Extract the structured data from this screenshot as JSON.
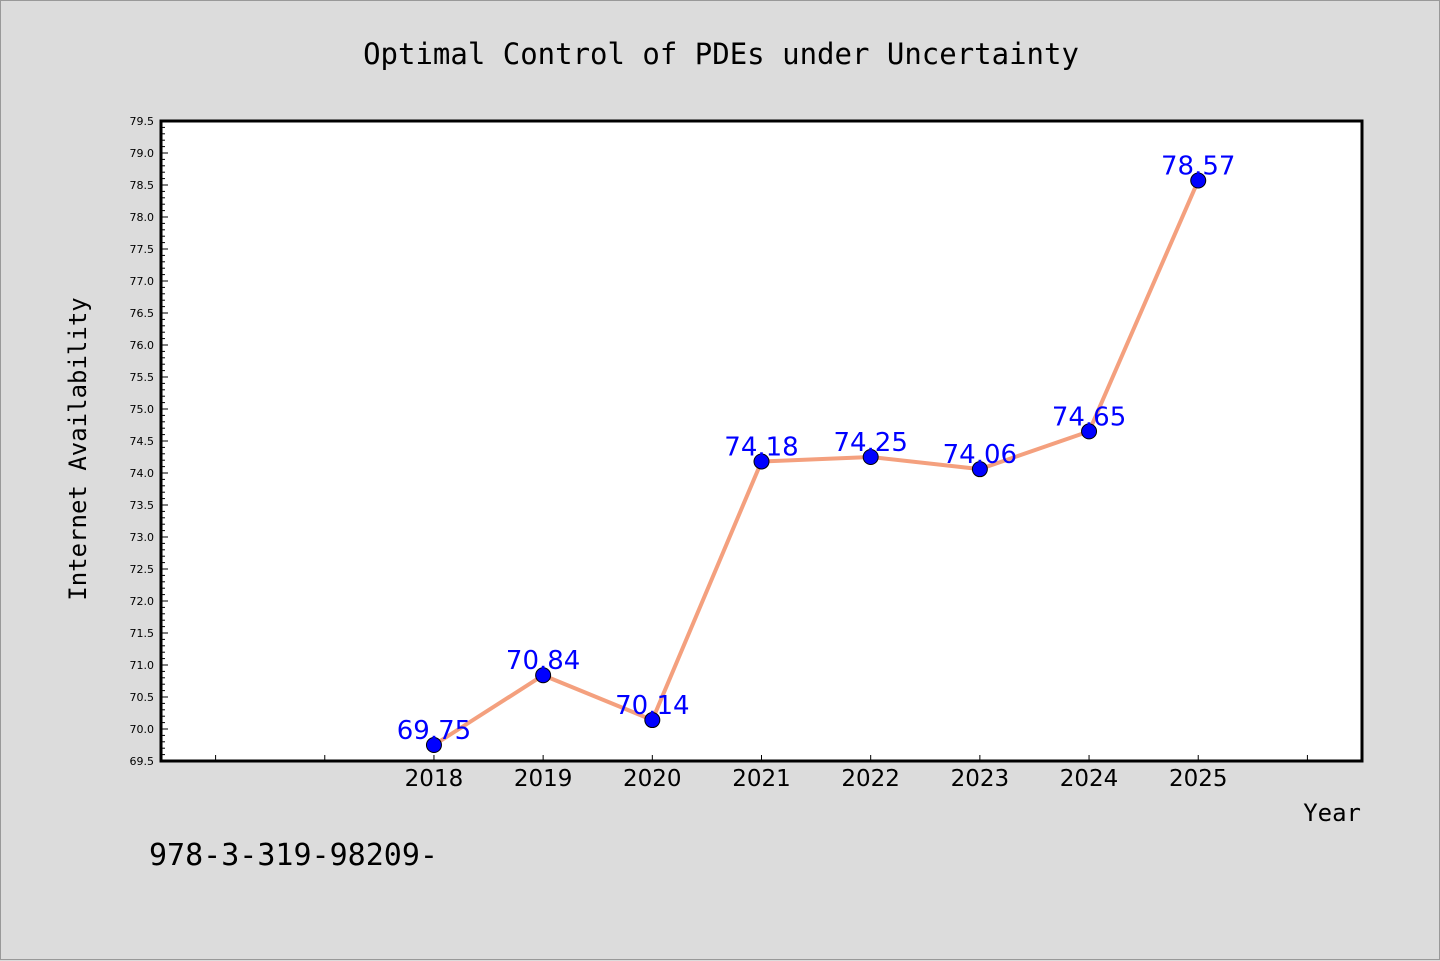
{
  "footer_text": "978-3-319-98209-",
  "chart_data": {
    "type": "line",
    "title": "Optimal Control of PDEs under Uncertainty",
    "xlabel": "Year",
    "ylabel": "Internet Availability",
    "categories": [
      "2018",
      "2019",
      "2020",
      "2021",
      "2022",
      "2023",
      "2024",
      "2025"
    ],
    "x": [
      2018,
      2019,
      2020,
      2021,
      2022,
      2023,
      2024,
      2025
    ],
    "values": [
      69.75,
      70.84,
      70.14,
      74.18,
      74.25,
      74.06,
      74.65,
      78.57
    ],
    "data_labels": [
      "69.75",
      "70.84",
      "70.14",
      "74.18",
      "74.25",
      "74.06",
      "74.65",
      "78.57"
    ],
    "xlim": [
      2015.5,
      2026.5
    ],
    "ylim": [
      69.5,
      79.5
    ],
    "yticks": [
      "69.5",
      "70.0",
      "70.5",
      "71.0",
      "71.5",
      "72.0",
      "72.5",
      "73.0",
      "73.5",
      "74.0",
      "74.5",
      "75.0",
      "75.5",
      "76.0",
      "76.5",
      "77.0",
      "77.5",
      "78.0",
      "78.5",
      "79.0",
      "79.5"
    ],
    "colors": {
      "line": "#f4a07e",
      "marker": "#0000ff",
      "label": "#0000ff",
      "plot_bg": "#ffffff",
      "page_bg": "#dcdcdc"
    },
    "grid": false,
    "legend": "none"
  }
}
